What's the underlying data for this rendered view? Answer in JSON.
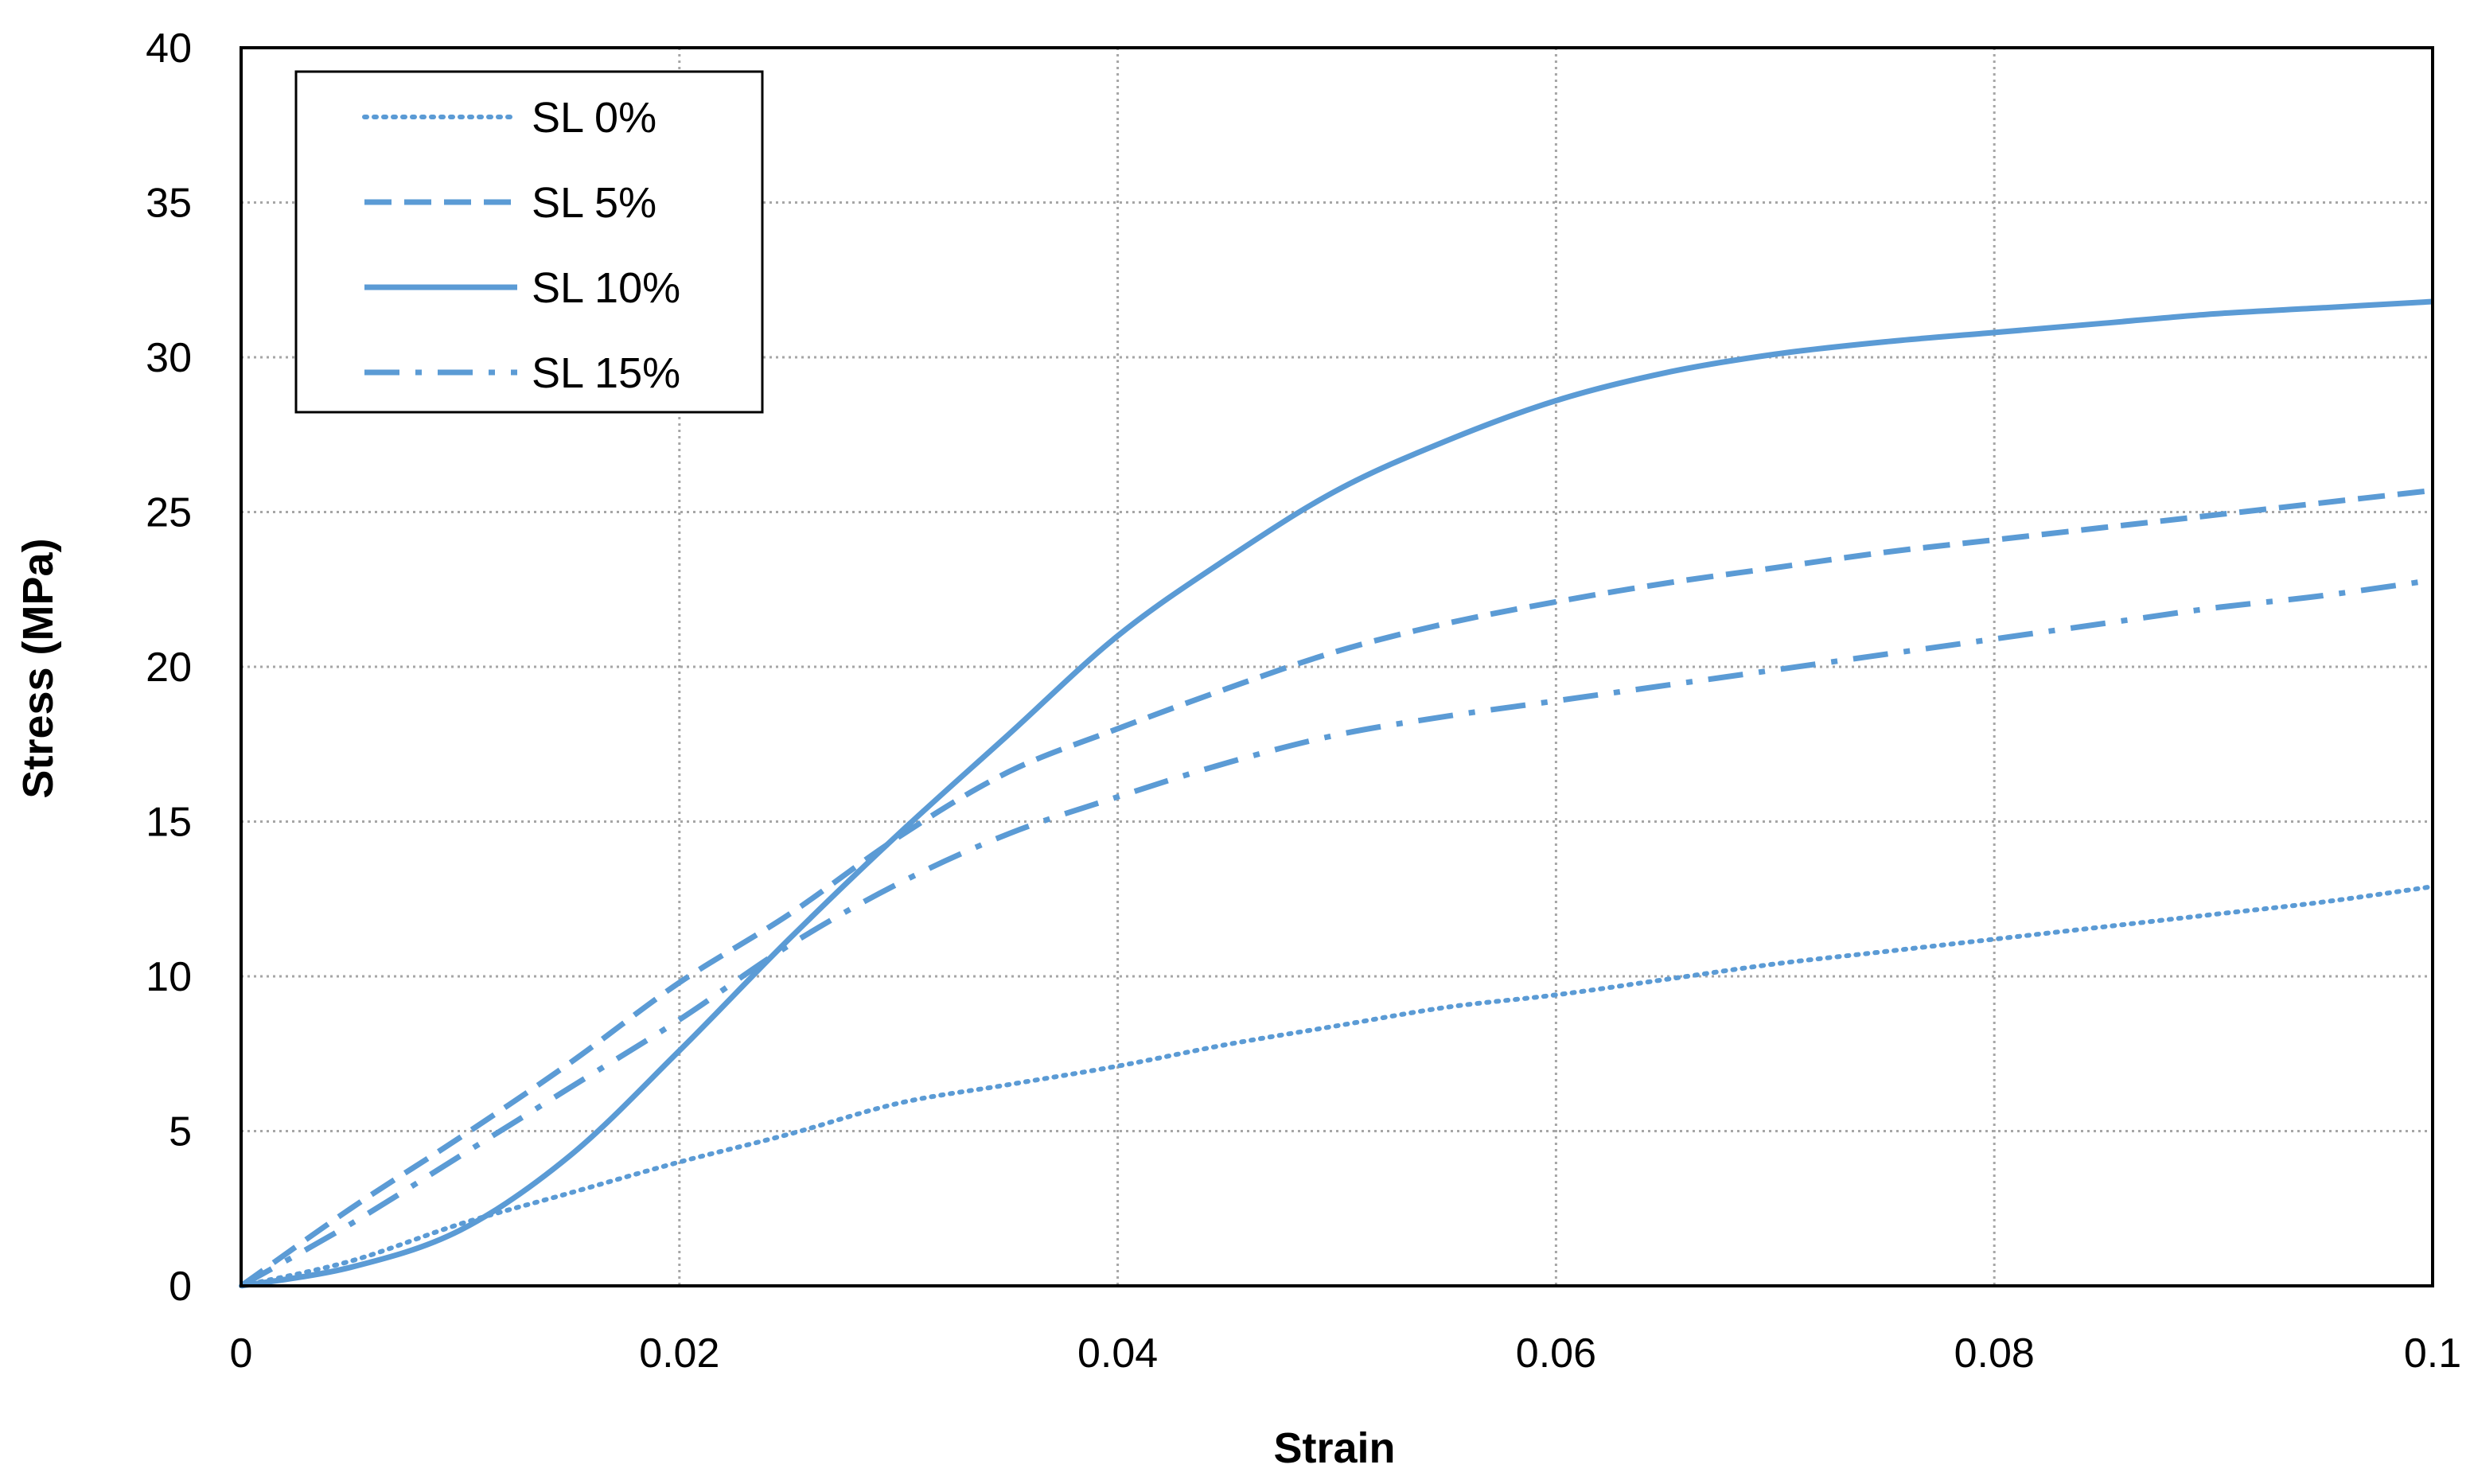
{
  "chart_data": {
    "type": "line",
    "title": "",
    "xlabel": "Strain",
    "ylabel": "Stress (MPa)",
    "xlim": [
      0,
      0.1
    ],
    "ylim": [
      0,
      40
    ],
    "x_ticks": [
      "0",
      "0.02",
      "0.04",
      "0.06",
      "0.08",
      "0.1"
    ],
    "y_ticks": [
      "0",
      "5",
      "10",
      "15",
      "20",
      "25",
      "30",
      "35",
      "40"
    ],
    "grid": true,
    "legend_position": "top-left",
    "line_color": "#5B9BD5",
    "x": [
      0,
      0.005,
      0.01,
      0.015,
      0.02,
      0.025,
      0.03,
      0.035,
      0.04,
      0.045,
      0.05,
      0.055,
      0.06,
      0.065,
      0.07,
      0.075,
      0.08,
      0.085,
      0.09,
      0.095,
      0.1
    ],
    "series": [
      {
        "name": "SL 0%",
        "style": "dotted",
        "values": [
          0,
          0.8,
          2.0,
          3.0,
          4.0,
          4.9,
          5.9,
          6.5,
          7.1,
          7.8,
          8.4,
          9.0,
          9.4,
          9.9,
          10.4,
          10.8,
          11.2,
          11.6,
          12.0,
          12.4,
          12.9
        ]
      },
      {
        "name": "SL 5%",
        "style": "dashed",
        "values": [
          0,
          2.5,
          4.8,
          7.2,
          9.8,
          12.0,
          14.5,
          16.6,
          18.0,
          19.3,
          20.5,
          21.4,
          22.1,
          22.7,
          23.2,
          23.7,
          24.1,
          24.5,
          24.9,
          25.3,
          25.7
        ]
      },
      {
        "name": "SL 10%",
        "style": "solid",
        "values": [
          0,
          0.6,
          1.8,
          4.2,
          7.6,
          11.2,
          14.6,
          17.8,
          21.0,
          23.5,
          25.7,
          27.3,
          28.6,
          29.5,
          30.1,
          30.5,
          30.8,
          31.1,
          31.4,
          31.6,
          31.8
        ]
      },
      {
        "name": "SL 15%",
        "style": "dash-dot",
        "values": [
          0,
          2.0,
          4.2,
          6.4,
          8.6,
          11.0,
          13.0,
          14.6,
          15.8,
          16.9,
          17.8,
          18.4,
          18.9,
          19.4,
          19.9,
          20.4,
          20.9,
          21.4,
          21.9,
          22.3,
          22.8
        ]
      }
    ]
  }
}
